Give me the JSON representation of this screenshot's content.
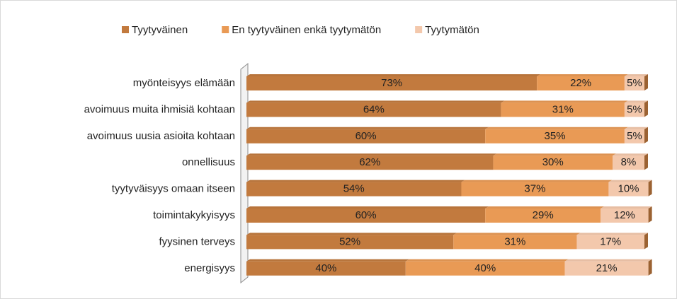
{
  "chart_data": {
    "type": "bar",
    "orientation": "horizontal",
    "stacked": true,
    "categories": [
      "myönteisyys elämään",
      "avoimuus muita ihmisiä kohtaan",
      "avoimuus uusia asioita kohtaan",
      "onnellisuus",
      "tyytyväisyys omaan itseen",
      "toimintakykyisyys",
      "fyysinen terveys",
      "energisyys"
    ],
    "series": [
      {
        "name": "Tyytyväinen",
        "color": "#c27a3e",
        "values": [
          73,
          64,
          60,
          62,
          54,
          60,
          52,
          40
        ],
        "value_labels": [
          "73%",
          "64%",
          "60%",
          "62%",
          "54%",
          "60%",
          "52%",
          "40%"
        ]
      },
      {
        "name": "En tyytyväinen enkä tyytymätön",
        "color": "#e99a55",
        "values": [
          22,
          31,
          35,
          30,
          37,
          29,
          31,
          40
        ],
        "value_labels": [
          "22%",
          "31%",
          "35%",
          "30%",
          "37%",
          "29%",
          "31%",
          "40%"
        ]
      },
      {
        "name": "Tyytymätön",
        "color": "#f3c8ac",
        "values": [
          5,
          5,
          5,
          8,
          10,
          12,
          17,
          21
        ],
        "value_labels": [
          "5%",
          "5%",
          "5%",
          "8%",
          "10%",
          "12%",
          "17%",
          "21%"
        ]
      }
    ],
    "xlim": [
      0,
      100
    ],
    "legend": "top"
  }
}
